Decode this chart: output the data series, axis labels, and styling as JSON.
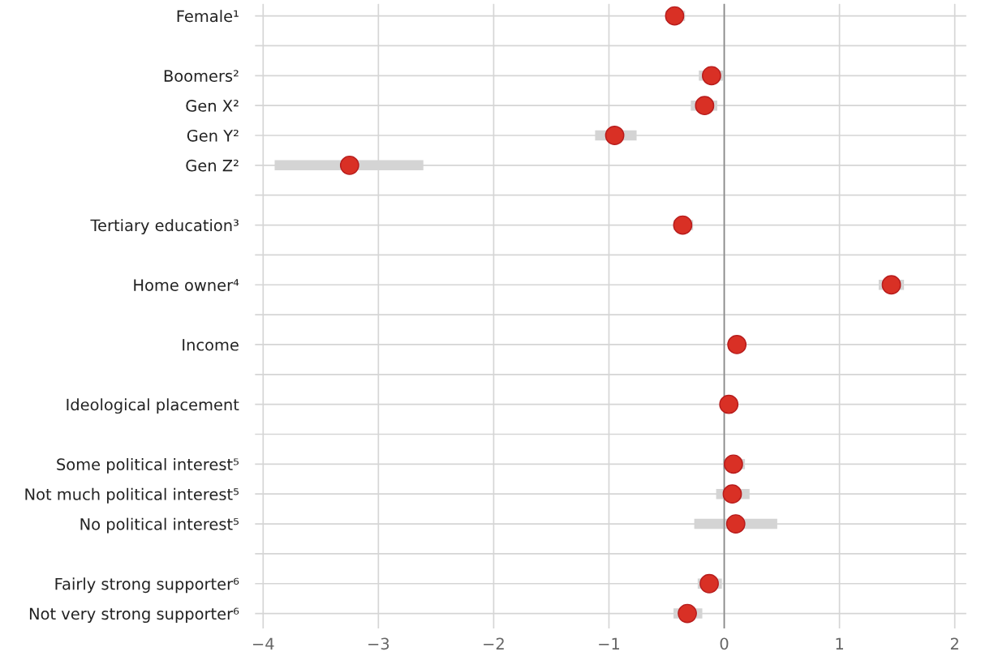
{
  "chart_data": {
    "type": "scatter",
    "orientation": "horizontal",
    "categories": [
      "Female¹",
      null,
      "Boomers²",
      "Gen X²",
      "Gen Y²",
      "Gen Z²",
      null,
      "Tertiary education³",
      null,
      "Home owner⁴",
      null,
      "Income",
      null,
      "Ideological placement",
      null,
      "Some political interest⁵",
      "Not much political interest⁵",
      "No political interest⁵",
      null,
      "Fairly strong supporter⁶",
      "Not very strong supporter⁶"
    ],
    "series": [
      {
        "color": "#d93025",
        "values": [
          -0.43,
          null,
          -0.11,
          -0.17,
          -0.95,
          -3.25,
          null,
          -0.36,
          null,
          1.45,
          null,
          0.11,
          null,
          0.04,
          null,
          0.08,
          0.07,
          0.1,
          null,
          -0.13,
          -0.32
        ],
        "errors": [
          [
            -0.51,
            -0.34
          ],
          null,
          [
            -0.22,
            -0.01
          ],
          [
            -0.29,
            -0.06
          ],
          [
            -1.12,
            -0.76
          ],
          [
            -3.9,
            -2.61
          ],
          null,
          [
            -0.44,
            -0.27
          ],
          null,
          [
            1.34,
            1.56
          ],
          null,
          null,
          null,
          null,
          null,
          [
            -0.01,
            0.18
          ],
          [
            -0.07,
            0.22
          ],
          [
            -0.26,
            0.46
          ],
          null,
          [
            -0.23,
            -0.02
          ],
          [
            -0.44,
            -0.19
          ]
        ]
      }
    ],
    "xlim": [
      -4.07,
      2.1
    ],
    "xticks": [
      {
        "value": -4,
        "label": "−4"
      },
      {
        "value": -3,
        "label": "−3"
      },
      {
        "value": -2,
        "label": "−2"
      },
      {
        "value": -1,
        "label": "−1"
      },
      0,
      1,
      2
    ],
    "ref_lines": [
      {
        "axis": "x",
        "value": 0,
        "color": "#888888"
      }
    ],
    "grid": true,
    "marker": "circle"
  }
}
